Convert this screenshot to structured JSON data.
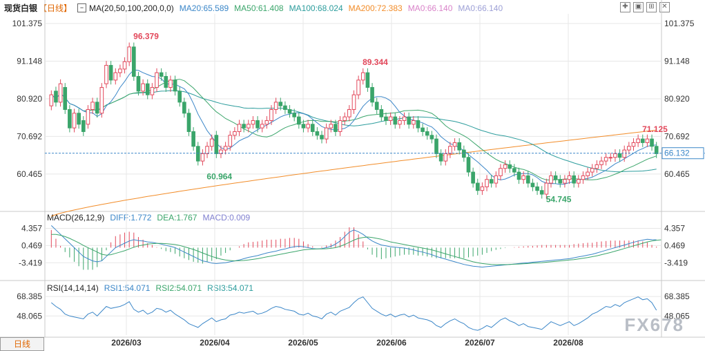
{
  "title": "现货白银",
  "period": "【日线】",
  "ma_indicator_label": "MA(20,50,100,200,0,0)",
  "ma_values": [
    {
      "label": "MA20:65.589",
      "color": "#3a86c8"
    },
    {
      "label": "MA50:61.408",
      "color": "#3aa56a"
    },
    {
      "label": "MA100:68.024",
      "color": "#2b9c9c"
    },
    {
      "label": "MA200:72.383",
      "color": "#f28c28"
    },
    {
      "label": "MA0:66.140",
      "color": "#d983c9"
    },
    {
      "label": "MA0:66.140",
      "color": "#9da0d6"
    }
  ],
  "macd_label": "MACD(26,12,9)",
  "macd_values": [
    {
      "label": "DIFF:1.772",
      "color": "#3a86c8"
    },
    {
      "label": "DEA:1.767",
      "color": "#3aa56a"
    },
    {
      "label": "MACD:0.009",
      "color": "#8080d0"
    }
  ],
  "rsi_label": "RSI(14,14,14)",
  "rsi_values": [
    {
      "label": "RSI1:54.071",
      "color": "#3a86c8"
    },
    {
      "label": "RSI2:54.071",
      "color": "#3aa56a"
    },
    {
      "label": "RSI3:54.071",
      "color": "#2b9c9c"
    }
  ],
  "footer_tab": "日线",
  "watermark": "FX678",
  "colors": {
    "up": "#e2475a",
    "down": "#3aa56a",
    "grid": "#e7e7e7",
    "axis_text": "#333333",
    "current_line": "#3a86c8"
  },
  "chart_data": {
    "type": "candlestick",
    "price_axis_ticks": [
      "101.375",
      "91.148",
      "80.920",
      "70.692",
      "60.465"
    ],
    "price_range": [
      50.5,
      104
    ],
    "x_tick_labels": [
      "2026/03",
      "2026/04",
      "2026/05",
      "2026/06",
      "2026/07",
      "2026/08"
    ],
    "annotations": [
      {
        "text": "96.379",
        "value": 96.379
      },
      {
        "text": "60.964",
        "value": 60.964
      },
      {
        "text": "89.344",
        "value": 89.344
      },
      {
        "text": "54.745",
        "value": 54.745
      },
      {
        "text": "71.125",
        "value": 71.125
      }
    ],
    "current_price": "66.132",
    "current_value": 66.132,
    "closes": [
      82,
      80,
      85,
      78,
      73,
      77,
      74,
      72,
      78,
      80,
      77,
      84,
      90,
      86,
      88,
      89,
      91,
      95,
      87,
      83,
      85,
      82,
      84,
      88,
      87,
      84,
      86,
      83,
      80,
      77,
      72,
      68,
      64,
      66,
      68,
      70,
      66,
      67,
      68,
      71,
      72,
      74,
      73,
      74,
      75,
      73,
      74,
      75,
      78,
      80,
      79,
      78,
      77,
      76,
      74,
      73,
      74,
      72,
      71,
      70,
      73,
      74,
      72,
      75,
      76,
      78,
      82,
      86,
      88,
      84,
      80,
      78,
      76,
      75,
      76,
      74,
      75,
      76,
      74,
      75,
      73,
      72,
      71,
      70,
      66,
      64,
      66,
      68,
      69,
      67,
      65,
      61,
      58,
      56,
      57,
      59,
      58,
      60,
      62,
      63,
      62,
      61,
      59,
      60,
      58,
      57,
      56,
      55,
      58,
      60,
      59,
      58,
      59,
      60,
      58,
      59,
      60,
      61,
      62,
      63,
      64,
      65,
      65,
      66,
      65,
      67,
      68,
      69,
      70,
      69,
      70,
      68,
      66
    ],
    "opens": [
      79,
      83,
      80,
      84,
      78,
      73,
      77,
      75,
      74,
      78,
      80,
      77,
      85,
      90,
      86,
      88,
      89,
      91,
      95,
      87,
      83,
      85,
      82,
      84,
      88,
      87,
      84,
      86,
      83,
      80,
      77,
      72,
      68,
      64,
      66,
      68,
      71,
      66,
      67,
      68,
      71,
      72,
      74,
      73,
      74,
      75,
      73,
      74,
      75,
      78,
      80,
      79,
      78,
      77,
      76,
      74,
      73,
      74,
      72,
      71,
      70,
      73,
      74,
      72,
      75,
      76,
      78,
      82,
      86,
      88,
      84,
      80,
      78,
      76,
      75,
      76,
      74,
      75,
      76,
      74,
      75,
      73,
      72,
      71,
      70,
      66,
      64,
      66,
      68,
      69,
      67,
      65,
      61,
      58,
      56,
      57,
      59,
      58,
      60,
      62,
      63,
      62,
      61,
      59,
      60,
      58,
      57,
      56,
      55,
      58,
      60,
      59,
      58,
      59,
      60,
      58,
      59,
      60,
      61,
      62,
      63,
      64,
      65,
      65,
      66,
      65,
      67,
      68,
      69,
      70,
      69,
      70,
      68
    ],
    "macd_axis_ticks": [
      "4.357",
      "0.469",
      "-3.419"
    ],
    "macd_range": [
      -6.5,
      6
    ],
    "diff": [
      5,
      4,
      3,
      2,
      1,
      0,
      -1,
      -2,
      -2.5,
      -3,
      -3.2,
      -3,
      -2,
      -1,
      0,
      0.5,
      1,
      1.5,
      1.8,
      1.6,
      1.5,
      1.3,
      1.2,
      1.0,
      0.8,
      0.5,
      0.3,
      0,
      -0.5,
      -1,
      -1.5,
      -2,
      -2.5,
      -3,
      -3.2,
      -3.5,
      -3.6,
      -3.5,
      -3.4,
      -3.2,
      -3,
      -2.8,
      -2.5,
      -2.2,
      -2,
      -1.8,
      -1.5,
      -1.2,
      -1,
      -0.8,
      -0.5,
      -0.3,
      0,
      0.2,
      0.3,
      0.2,
      0,
      -0.2,
      -0.3,
      -0.2,
      0,
      0.3,
      0.8,
      1.5,
      2.5,
      3.5,
      4,
      3.6,
      3,
      2.2,
      1.5,
      1,
      0.6,
      0.4,
      0.2,
      0.1,
      0,
      -0.1,
      -0.3,
      -0.5,
      -0.8,
      -1,
      -1.3,
      -1.6,
      -2,
      -2.3,
      -2.6,
      -2.9,
      -3.2,
      -3.5,
      -3.8,
      -4,
      -4.2,
      -4.3,
      -4.4,
      -4.3,
      -4.2,
      -4.1,
      -4,
      -3.9,
      -3.8,
      -3.7,
      -3.6,
      -3.5,
      -3.4,
      -3.3,
      -3.2,
      -3.1,
      -3.0,
      -2.9,
      -2.8,
      -2.7,
      -2.6,
      -2.5,
      -2.3,
      -2.1,
      -1.9,
      -1.7,
      -1.5,
      -1.2,
      -0.9,
      -0.6,
      -0.3,
      0,
      0.3,
      0.6,
      0.9,
      1.2,
      1.5,
      1.7,
      1.9,
      1.8,
      1.77
    ],
    "dea": [
      3,
      3,
      2.8,
      2.5,
      2.1,
      1.6,
      1.1,
      0.5,
      0,
      -0.5,
      -1,
      -1.5,
      -1.7,
      -1.6,
      -1.3,
      -1,
      -0.7,
      -0.3,
      0.1,
      0.4,
      0.6,
      0.8,
      0.9,
      0.95,
      0.95,
      0.9,
      0.8,
      0.7,
      0.5,
      0.2,
      -0.1,
      -0.4,
      -0.8,
      -1.2,
      -1.6,
      -2,
      -2.3,
      -2.6,
      -2.8,
      -2.9,
      -3,
      -2.95,
      -2.9,
      -2.8,
      -2.65,
      -2.5,
      -2.3,
      -2.1,
      -1.9,
      -1.7,
      -1.5,
      -1.3,
      -1.1,
      -0.9,
      -0.7,
      -0.5,
      -0.4,
      -0.35,
      -0.3,
      -0.3,
      -0.25,
      -0.15,
      0,
      0.3,
      0.7,
      1.2,
      1.7,
      2.1,
      2.3,
      2.4,
      2.3,
      2.1,
      1.9,
      1.6,
      1.3,
      1.1,
      0.9,
      0.7,
      0.5,
      0.3,
      0.1,
      -0.1,
      -0.3,
      -0.5,
      -0.8,
      -1.1,
      -1.4,
      -1.7,
      -2,
      -2.3,
      -2.6,
      -2.9,
      -3.2,
      -3.4,
      -3.6,
      -3.7,
      -3.8,
      -3.85,
      -3.85,
      -3.85,
      -3.8,
      -3.75,
      -3.7,
      -3.65,
      -3.6,
      -3.5,
      -3.45,
      -3.4,
      -3.3,
      -3.2,
      -3.1,
      -3.0,
      -2.9,
      -2.8,
      -2.7,
      -2.55,
      -2.4,
      -2.25,
      -2.05,
      -1.85,
      -1.6,
      -1.35,
      -1.1,
      -0.8,
      -0.5,
      -0.2,
      0.1,
      0.4,
      0.7,
      1.0,
      1.3,
      1.5,
      1.65,
      1.767
    ],
    "rsi_axis_ticks": [
      "68.385",
      "48.065"
    ],
    "rsi_range": [
      28,
      75
    ],
    "rsi": [
      62,
      58,
      55,
      50,
      48,
      47,
      46,
      45,
      50,
      52,
      48,
      53,
      58,
      56,
      57,
      58,
      60,
      63,
      55,
      52,
      54,
      50,
      52,
      56,
      55,
      52,
      54,
      50,
      47,
      44,
      40,
      38,
      36,
      40,
      43,
      46,
      42,
      44,
      45,
      49,
      50,
      52,
      51,
      52,
      53,
      50,
      51,
      53,
      56,
      58,
      57,
      55,
      54,
      53,
      50,
      49,
      51,
      48,
      47,
      45,
      50,
      52,
      49,
      53,
      55,
      57,
      62,
      66,
      68,
      62,
      56,
      53,
      50,
      48,
      50,
      47,
      49,
      50,
      47,
      49,
      46,
      45,
      44,
      42,
      38,
      36,
      40,
      43,
      45,
      42,
      40,
      36,
      34,
      33,
      35,
      38,
      36,
      40,
      44,
      46,
      43,
      41,
      38,
      40,
      37,
      36,
      35,
      34,
      38,
      42,
      40,
      38,
      40,
      42,
      38,
      40,
      43,
      46,
      50,
      52,
      55,
      58,
      57,
      60,
      58,
      62,
      64,
      66,
      68,
      65,
      66,
      62,
      54
    ]
  }
}
